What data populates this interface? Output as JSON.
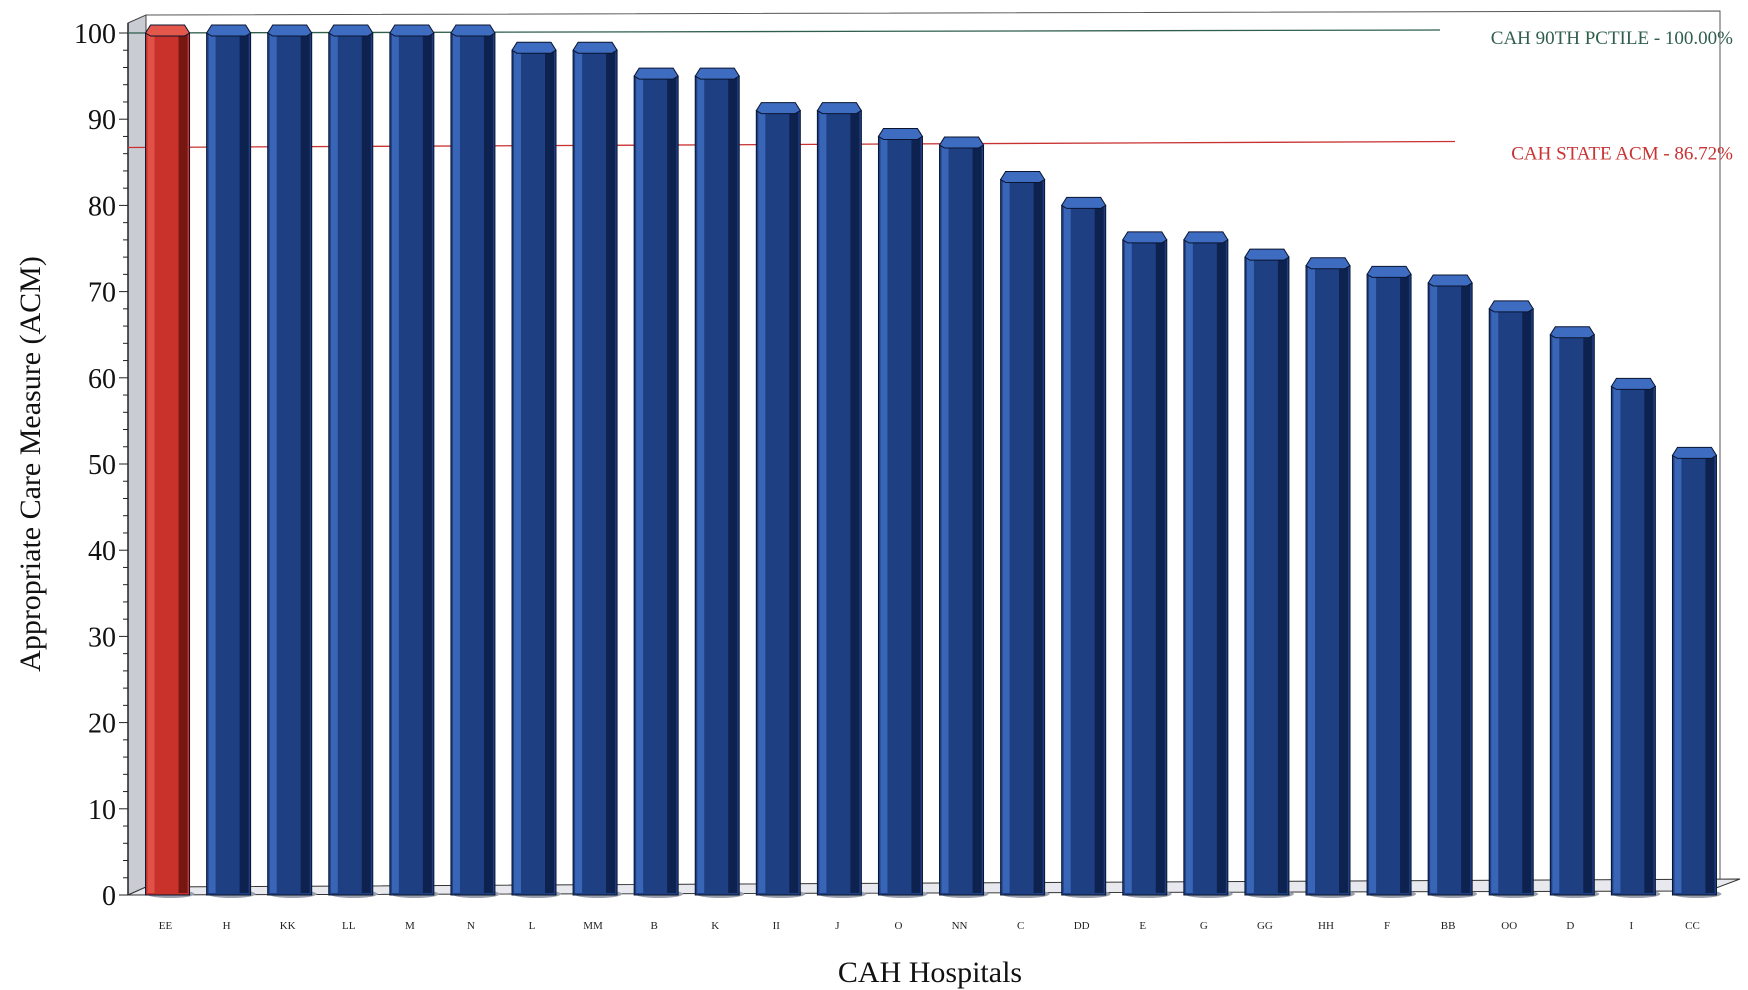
{
  "chart_data": {
    "type": "bar",
    "style": "3d-cylinder",
    "xlabel": "CAH Hospitals",
    "ylabel": "Appropriate Care Measure (ACM)",
    "ylim": [
      0,
      100
    ],
    "yticks": [
      0,
      10,
      20,
      30,
      40,
      50,
      60,
      70,
      80,
      90,
      100
    ],
    "grid": false,
    "categories": [
      "EE",
      "H",
      "KK",
      "LL",
      "M",
      "N",
      "L",
      "MM",
      "B",
      "K",
      "II",
      "J",
      "O",
      "NN",
      "C",
      "DD",
      "E",
      "G",
      "GG",
      "HH",
      "F",
      "BB",
      "OO",
      "D",
      "I",
      "CC"
    ],
    "values": [
      100,
      100,
      100,
      100,
      100,
      100,
      98,
      98,
      95,
      95,
      91,
      91,
      88,
      87,
      83,
      80,
      76,
      76,
      74,
      73,
      72,
      71,
      68,
      65,
      59,
      51
    ],
    "highlight_category": "EE",
    "colors": {
      "bar": "#1e3f82",
      "bar_dark": "#0c1f4a",
      "bar_light": "#3e6cc0",
      "highlight": "#c8322a",
      "highlight_dark": "#6e1410",
      "highlight_light": "#e4584c",
      "percentile_line": "#2f5e4c",
      "state_line": "#c83232"
    },
    "reference_lines": [
      {
        "name": "CAH 90TH PCTILE",
        "value": 100,
        "label": "CAH 90TH PCTILE - 100.00%",
        "color": "#2f5e4c"
      },
      {
        "name": "CAH STATE ACM",
        "value": 86.72,
        "label": "CAH STATE ACM -  86.72%",
        "color": "#c83232"
      }
    ]
  }
}
